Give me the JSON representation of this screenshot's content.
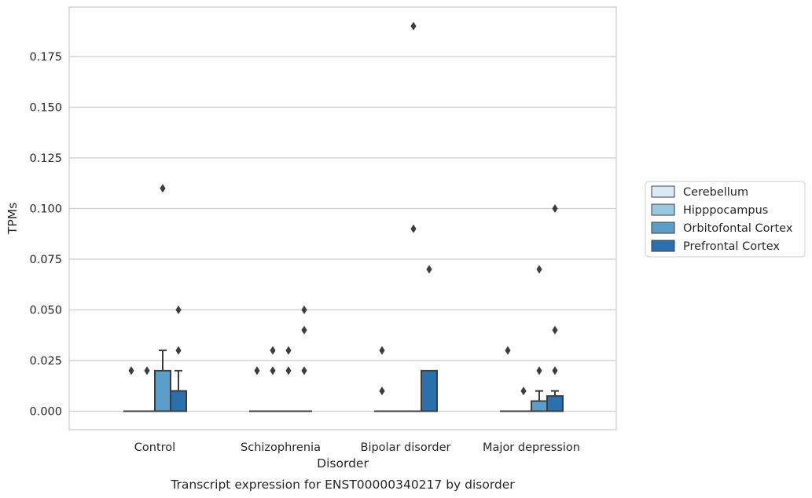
{
  "chart_data": {
    "type": "box",
    "title": "Transcript expression for ENST00000340217 by disorder",
    "xlabel": "Disorder",
    "ylabel": "TPMs",
    "ylim": [
      -0.009,
      0.198
    ],
    "yticks": [
      "0.000",
      "0.025",
      "0.050",
      "0.075",
      "0.100",
      "0.125",
      "0.150",
      "0.175"
    ],
    "grid": true,
    "legend_position": "right",
    "categories": [
      "Control",
      "Schizophrenia",
      "Bipolar disorder",
      "Major depression"
    ],
    "series": [
      {
        "name": "Cerebellum",
        "color": "#dbe9f6",
        "boxes": [
          {
            "q1": 0,
            "median": 0,
            "q3": 0,
            "whisker_low": 0,
            "whisker_high": 0,
            "outliers": [
              0.02
            ]
          },
          {
            "q1": 0,
            "median": 0,
            "q3": 0,
            "whisker_low": 0,
            "whisker_high": 0,
            "outliers": [
              0.02
            ]
          },
          {
            "q1": 0,
            "median": 0,
            "q3": 0,
            "whisker_low": 0,
            "whisker_high": 0,
            "outliers": [
              0.01,
              0.03
            ]
          },
          {
            "q1": 0,
            "median": 0,
            "q3": 0,
            "whisker_low": 0,
            "whisker_high": 0,
            "outliers": [
              0.03
            ]
          }
        ]
      },
      {
        "name": "Hipppocampus",
        "color": "#9ac8e0",
        "boxes": [
          {
            "q1": 0,
            "median": 0,
            "q3": 0,
            "whisker_low": 0,
            "whisker_high": 0,
            "outliers": [
              0.02
            ]
          },
          {
            "q1": 0,
            "median": 0,
            "q3": 0,
            "whisker_low": 0,
            "whisker_high": 0,
            "outliers": [
              0.02,
              0.03
            ]
          },
          {
            "q1": 0,
            "median": 0,
            "q3": 0,
            "whisker_low": 0,
            "whisker_high": 0,
            "outliers": []
          },
          {
            "q1": 0,
            "median": 0,
            "q3": 0,
            "whisker_low": 0,
            "whisker_high": 0,
            "outliers": [
              0.01
            ]
          }
        ]
      },
      {
        "name": "Orbitofontal Cortex",
        "color": "#5a9ec9",
        "boxes": [
          {
            "q1": 0,
            "median": 0,
            "q3": 0.02,
            "whisker_low": 0,
            "whisker_high": 0.03,
            "outliers": [
              0.11
            ]
          },
          {
            "q1": 0,
            "median": 0,
            "q3": 0,
            "whisker_low": 0,
            "whisker_high": 0,
            "outliers": [
              0.02,
              0.03
            ]
          },
          {
            "q1": 0,
            "median": 0,
            "q3": 0,
            "whisker_low": 0,
            "whisker_high": 0,
            "outliers": [
              0.09,
              0.19
            ]
          },
          {
            "q1": 0,
            "median": 0,
            "q3": 0.005,
            "whisker_low": 0,
            "whisker_high": 0.01,
            "outliers": [
              0.02,
              0.07
            ]
          }
        ]
      },
      {
        "name": "Prefrontal Cortex",
        "color": "#2c6fad",
        "boxes": [
          {
            "q1": 0,
            "median": 0,
            "q3": 0.01,
            "whisker_low": 0,
            "whisker_high": 0.02,
            "outliers": [
              0.03,
              0.05
            ]
          },
          {
            "q1": 0,
            "median": 0,
            "q3": 0,
            "whisker_low": 0,
            "whisker_high": 0,
            "outliers": [
              0.02,
              0.04,
              0.05
            ]
          },
          {
            "q1": 0,
            "median": 0,
            "q3": 0.02,
            "whisker_low": 0,
            "whisker_high": 0.02,
            "outliers": [
              0.07
            ]
          },
          {
            "q1": 0,
            "median": 0,
            "q3": 0.0075,
            "whisker_low": 0,
            "whisker_high": 0.01,
            "outliers": [
              0.02,
              0.04,
              0.1
            ]
          }
        ]
      }
    ]
  }
}
